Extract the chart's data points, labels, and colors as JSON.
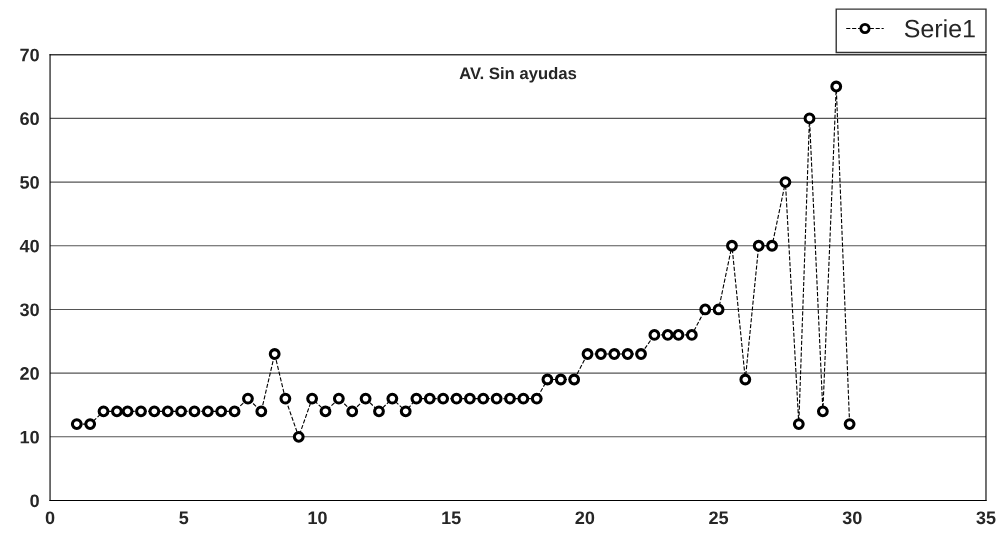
{
  "chart_data": {
    "type": "line",
    "title": "AV. Sin ayudas",
    "x": [
      1.0,
      1.5,
      2.0,
      2.5,
      2.9,
      3.4,
      3.9,
      4.4,
      4.9,
      5.4,
      5.9,
      6.4,
      6.9,
      7.4,
      7.9,
      8.4,
      8.8,
      9.3,
      9.8,
      10.3,
      10.8,
      11.3,
      11.8,
      12.3,
      12.8,
      13.3,
      13.7,
      14.2,
      14.7,
      15.2,
      15.7,
      16.2,
      16.7,
      17.2,
      17.7,
      18.2,
      18.6,
      19.1,
      19.6,
      20.1,
      20.6,
      21.1,
      21.6,
      22.1,
      22.6,
      23.1,
      23.5,
      24.0,
      24.5,
      25.0,
      25.5,
      26.0,
      26.5,
      27.0,
      27.5,
      28.0,
      28.4,
      28.9,
      29.4,
      29.9
    ],
    "series": [
      {
        "name": "Serie1",
        "color": "#000000",
        "values": [
          12,
          12,
          14,
          14,
          14,
          14,
          14,
          14,
          14,
          14,
          14,
          14,
          14,
          16,
          14,
          23,
          16,
          10,
          16,
          14,
          16,
          14,
          16,
          14,
          16,
          14,
          16,
          16,
          16,
          16,
          16,
          16,
          16,
          16,
          16,
          16,
          19,
          19,
          19,
          23,
          23,
          23,
          23,
          23,
          26,
          26,
          26,
          26,
          30,
          30,
          40,
          19,
          40,
          40,
          50,
          12,
          60,
          14,
          65,
          12
        ]
      }
    ],
    "xlim": [
      0,
      35
    ],
    "xticks": [
      0,
      5,
      10,
      15,
      20,
      25,
      30,
      35
    ],
    "ylim": [
      0,
      70
    ],
    "yticks": [
      0,
      10,
      20,
      30,
      40,
      50,
      60,
      70
    ],
    "grid": "y",
    "legend": "top right",
    "marker": "circle",
    "line_style": "dashed"
  }
}
